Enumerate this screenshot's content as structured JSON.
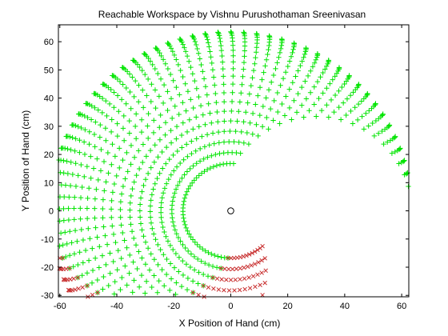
{
  "chart_data": {
    "type": "scatter",
    "title": "Reachable Workspace by Vishnu Purushothaman Sreenivasan",
    "xlabel": "X Position of Hand (cm)",
    "ylabel": "Y Position of Hand (cm)",
    "xlim": [
      -60.5,
      62.5
    ],
    "ylim": [
      -30.5,
      66
    ],
    "xticks": [
      -60,
      -40,
      -20,
      0,
      20,
      40,
      60
    ],
    "yticks": [
      -30,
      -20,
      -10,
      0,
      10,
      20,
      30,
      40,
      50,
      60
    ],
    "grid": false,
    "legend": "none",
    "marker_origin": {
      "x": 0,
      "y": 0,
      "marker": "circle",
      "color": "#000000"
    },
    "series": [
      {
        "marker": "plus",
        "color": "#00e400",
        "generator": {
          "l1": 30,
          "l2": 33.5,
          "theta1_range_deg": [
            0,
            180
          ],
          "theta2_range_deg": [
            0,
            150
          ]
        }
      },
      {
        "marker": "x",
        "color": "#c83030",
        "generator": {
          "l1": 30,
          "l2": 33.5,
          "theta1_range_deg": [
            180,
            225
          ],
          "theta2_range_deg": [
            0,
            150
          ]
        }
      }
    ]
  }
}
